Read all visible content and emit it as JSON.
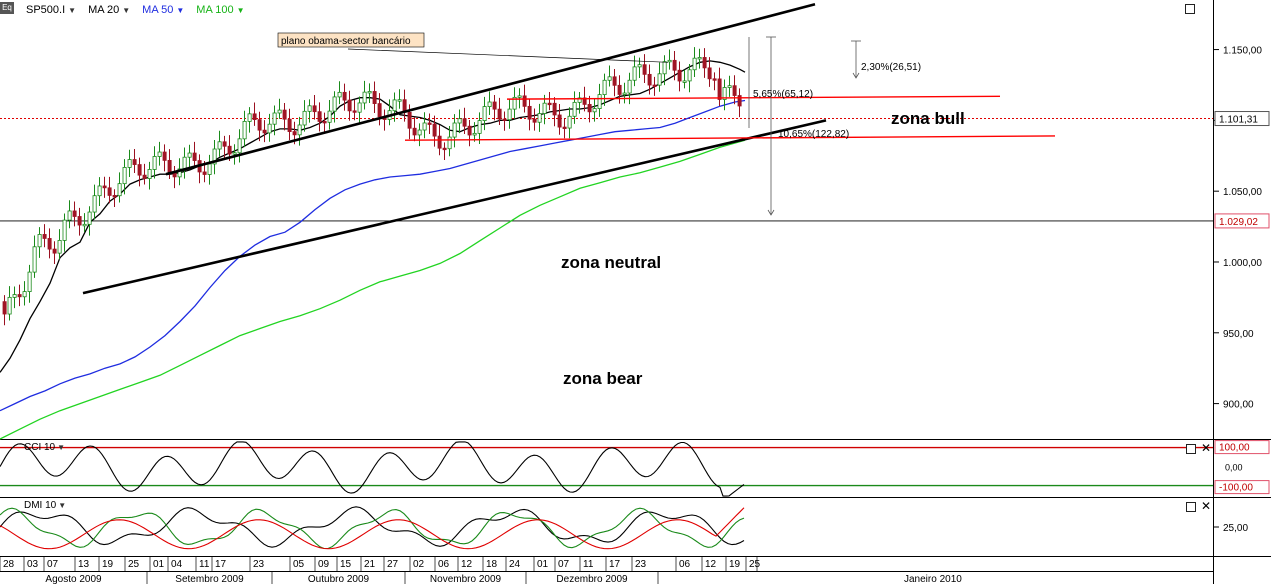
{
  "header": {
    "logo": "Eq",
    "symbol": "SP500.I",
    "indicators": [
      {
        "label": "MA 20",
        "color": "#000000"
      },
      {
        "label": "MA 50",
        "color": "#1f2de0"
      },
      {
        "label": "MA 100",
        "color": "#22d422"
      }
    ]
  },
  "annotations": {
    "callout": "plano obama-sector bancário",
    "zones": [
      "zona bull",
      "zona neutral",
      "zona bear"
    ],
    "measures": [
      "2,30%(26,51)",
      "5,65%(65,12)",
      "10,65%(122,82)"
    ]
  },
  "chart_data": [
    {
      "type": "candlestick",
      "title": "SP500.I",
      "x_day_labels": [
        "28",
        "03",
        "07",
        "13",
        "19",
        "25",
        "01",
        "04",
        "11",
        "17",
        "23",
        "05",
        "09",
        "15",
        "21",
        "27",
        "02",
        "06",
        "12",
        "18",
        "24",
        "01",
        "07",
        "11",
        "17",
        "23",
        "06",
        "12",
        "19",
        "25"
      ],
      "month_labels": [
        "Agosto 2009",
        "Setembro 2009",
        "Outubro 2009",
        "Novembro 2009",
        "Dezembro 2009",
        "Janeiro 2010"
      ],
      "y_ticks": [
        900,
        950,
        1000,
        1050,
        1100,
        1150
      ],
      "y_tick_labels": [
        "900,00",
        "950,00",
        "1.000,00",
        "1.050,00",
        "1.100,00",
        "1.150,00"
      ],
      "ylim": [
        875,
        1185
      ],
      "last_price_label": "1.101,31",
      "support_label": "1.029,02",
      "series": [
        {
          "name": "MA 20",
          "color": "#000000",
          "points": [
            [
              0,
              922
            ],
            [
              10,
              932
            ],
            [
              20,
              945
            ],
            [
              30,
              960
            ],
            [
              40,
              972
            ],
            [
              50,
              985
            ],
            [
              60,
              1003
            ],
            [
              70,
              1010
            ],
            [
              80,
              1014
            ],
            [
              90,
              1028
            ],
            [
              100,
              1034
            ],
            [
              110,
              1043
            ],
            [
              120,
              1048
            ],
            [
              130,
              1055
            ],
            [
              140,
              1058
            ],
            [
              150,
              1060
            ],
            [
              160,
              1062
            ],
            [
              170,
              1062
            ],
            [
              180,
              1063
            ],
            [
              190,
              1065
            ],
            [
              200,
              1068
            ],
            [
              210,
              1070
            ],
            [
              220,
              1074
            ],
            [
              230,
              1077
            ],
            [
              240,
              1080
            ],
            [
              250,
              1084
            ],
            [
              260,
              1088
            ],
            [
              270,
              1092
            ],
            [
              280,
              1094
            ],
            [
              290,
              1094
            ],
            [
              300,
              1093
            ],
            [
              310,
              1095
            ],
            [
              320,
              1098
            ],
            [
              330,
              1103
            ],
            [
              340,
              1110
            ],
            [
              350,
              1114
            ],
            [
              360,
              1116
            ],
            [
              370,
              1116
            ],
            [
              380,
              1115
            ],
            [
              390,
              1110
            ],
            [
              400,
              1104
            ],
            [
              410,
              1103
            ],
            [
              420,
              1102
            ],
            [
              430,
              1100
            ],
            [
              440,
              1097
            ],
            [
              450,
              1093
            ],
            [
              460,
              1092
            ],
            [
              470,
              1095
            ],
            [
              480,
              1097
            ],
            [
              490,
              1098
            ],
            [
              500,
              1100
            ],
            [
              510,
              1100
            ],
            [
              520,
              1102
            ],
            [
              530,
              1103
            ],
            [
              540,
              1104
            ],
            [
              550,
              1106
            ],
            [
              560,
              1107
            ],
            [
              570,
              1108
            ],
            [
              580,
              1108
            ],
            [
              590,
              1109
            ],
            [
              600,
              1111
            ],
            [
              610,
              1114
            ],
            [
              620,
              1117
            ],
            [
              630,
              1118
            ],
            [
              640,
              1119
            ],
            [
              650,
              1122
            ],
            [
              660,
              1126
            ],
            [
              670,
              1130
            ],
            [
              680,
              1134
            ],
            [
              690,
              1138
            ],
            [
              700,
              1141
            ],
            [
              710,
              1142
            ],
            [
              720,
              1141
            ],
            [
              730,
              1139
            ],
            [
              740,
              1136
            ],
            [
              745,
              1134
            ]
          ]
        },
        {
          "name": "MA 50",
          "color": "#1f2de0",
          "points": [
            [
              0,
              895
            ],
            [
              15,
              900
            ],
            [
              30,
              905
            ],
            [
              45,
              909
            ],
            [
              60,
              914
            ],
            [
              75,
              918
            ],
            [
              90,
              921
            ],
            [
              105,
              925
            ],
            [
              120,
              928
            ],
            [
              135,
              933
            ],
            [
              150,
              940
            ],
            [
              165,
              948
            ],
            [
              180,
              958
            ],
            [
              195,
              969
            ],
            [
              210,
              982
            ],
            [
              225,
              994
            ],
            [
              240,
              1004
            ],
            [
              255,
              1012
            ],
            [
              270,
              1018
            ],
            [
              285,
              1021
            ],
            [
              300,
              1028
            ],
            [
              315,
              1037
            ],
            [
              330,
              1045
            ],
            [
              345,
              1051
            ],
            [
              360,
              1055
            ],
            [
              375,
              1058
            ],
            [
              390,
              1060
            ],
            [
              405,
              1061
            ],
            [
              420,
              1062
            ],
            [
              435,
              1064
            ],
            [
              450,
              1066
            ],
            [
              465,
              1069
            ],
            [
              480,
              1072
            ],
            [
              495,
              1075
            ],
            [
              510,
              1078
            ],
            [
              525,
              1080
            ],
            [
              540,
              1082
            ],
            [
              555,
              1084
            ],
            [
              570,
              1086
            ],
            [
              585,
              1088
            ],
            [
              600,
              1090
            ],
            [
              615,
              1092
            ],
            [
              630,
              1093
            ],
            [
              645,
              1094
            ],
            [
              660,
              1095
            ],
            [
              675,
              1098
            ],
            [
              690,
              1102
            ],
            [
              705,
              1106
            ],
            [
              720,
              1110
            ],
            [
              735,
              1113
            ],
            [
              745,
              1114
            ]
          ]
        },
        {
          "name": "MA 100",
          "color": "#22d422",
          "points": [
            [
              0,
              875
            ],
            [
              20,
              882
            ],
            [
              40,
              889
            ],
            [
              60,
              895
            ],
            [
              80,
              900
            ],
            [
              100,
              905
            ],
            [
              120,
              910
            ],
            [
              140,
              915
            ],
            [
              160,
              920
            ],
            [
              180,
              927
            ],
            [
              200,
              934
            ],
            [
              220,
              941
            ],
            [
              240,
              948
            ],
            [
              260,
              953
            ],
            [
              280,
              958
            ],
            [
              300,
              962
            ],
            [
              320,
              967
            ],
            [
              340,
              973
            ],
            [
              360,
              980
            ],
            [
              380,
              986
            ],
            [
              400,
              990
            ],
            [
              420,
              994
            ],
            [
              440,
              999
            ],
            [
              460,
              1006
            ],
            [
              480,
              1015
            ],
            [
              500,
              1024
            ],
            [
              520,
              1033
            ],
            [
              540,
              1040
            ],
            [
              560,
              1046
            ],
            [
              580,
              1052
            ],
            [
              600,
              1056
            ],
            [
              620,
              1060
            ],
            [
              640,
              1063
            ],
            [
              660,
              1067
            ],
            [
              680,
              1071
            ],
            [
              700,
              1076
            ],
            [
              720,
              1081
            ],
            [
              740,
              1085
            ],
            [
              745,
              1086
            ]
          ]
        }
      ],
      "trendlines": [
        {
          "from": [
            166,
            1062
          ],
          "to": [
            815,
            1182
          ],
          "color": "#000000"
        },
        {
          "from": [
            83,
            978
          ],
          "to": [
            826,
            1100
          ],
          "color": "#000000"
        },
        {
          "from": [
            507,
            1115
          ],
          "to": [
            1000,
            1117
          ],
          "color": "#ff0000"
        },
        {
          "from": [
            405,
            1086
          ],
          "to": [
            1055,
            1089
          ],
          "color": "#ff0000"
        }
      ]
    },
    {
      "type": "line",
      "title": "CCI 10",
      "y_tick_labels": [
        "100,00",
        "0,00",
        "-100,00"
      ],
      "ylim": [
        -160,
        140
      ],
      "reference_lines": [
        100,
        -100
      ]
    },
    {
      "type": "line",
      "title": "DMI 10",
      "y_tick_labels": [
        "25,00"
      ],
      "ylim": [
        5,
        45
      ]
    }
  ]
}
